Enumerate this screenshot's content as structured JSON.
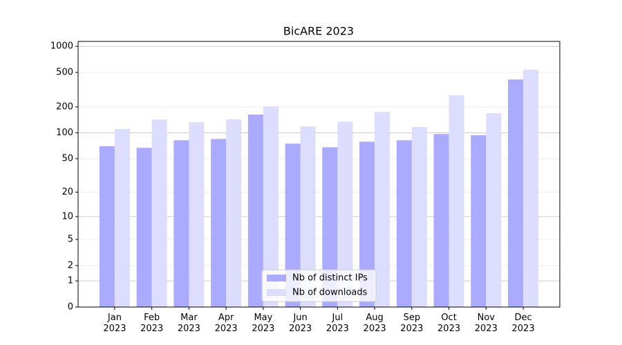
{
  "chart_data": {
    "type": "bar",
    "title": "BicARE 2023",
    "categories": [
      "Jan\n2023",
      "Feb\n2023",
      "Mar\n2023",
      "Apr\n2023",
      "May\n2023",
      "Jun\n2023",
      "Jul\n2023",
      "Aug\n2023",
      "Sep\n2023",
      "Oct\n2023",
      "Nov\n2023",
      "Dec\n2023"
    ],
    "series": [
      {
        "name": "Nb of distinct IPs",
        "color": "#aaaaff",
        "values": [
          70,
          67,
          82,
          85,
          163,
          75,
          68,
          79,
          82,
          97,
          94,
          415
        ]
      },
      {
        "name": "Nb of downloads",
        "color": "#ddddff",
        "values": [
          111,
          143,
          133,
          143,
          203,
          119,
          135,
          175,
          117,
          272,
          169,
          536
        ]
      }
    ],
    "yscale": "log1p",
    "ylim": [
      0,
      1140
    ],
    "yticks": [
      0,
      1,
      2,
      5,
      10,
      20,
      50,
      100,
      200,
      500,
      1000
    ],
    "grid": true,
    "legend": "lower center"
  }
}
